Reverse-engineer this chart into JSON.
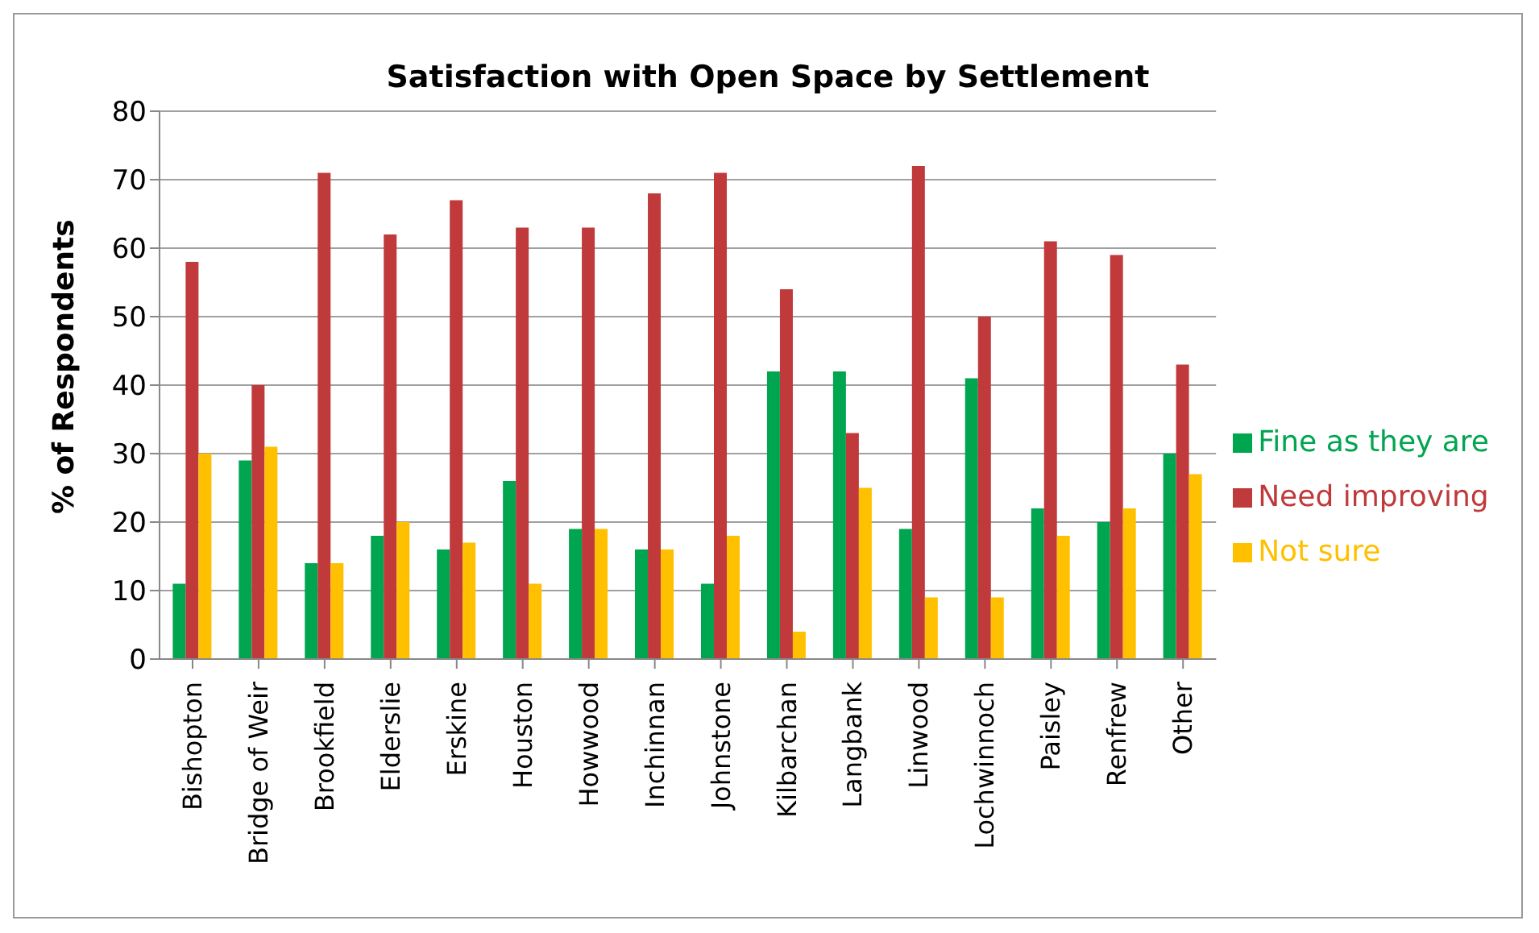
{
  "chart_data": {
    "type": "bar",
    "title": "Satisfaction with Open Space by Settlement",
    "ylabel": "% of Respondents",
    "categories": [
      "Bishopton",
      "Bridge of Weir",
      "Brookfield",
      "Elderslie",
      "Erskine",
      "Houston",
      "Howwood",
      "Inchinnan",
      "Johnstone",
      "Kilbarchan",
      "Langbank",
      "Linwood",
      "Lochwinnoch",
      "Paisley",
      "Renfrew",
      "Other"
    ],
    "series": [
      {
        "name": "Fine as they are",
        "color": "#00a550",
        "values": [
          11,
          29,
          14,
          18,
          16,
          26,
          19,
          16,
          11,
          42,
          42,
          19,
          41,
          22,
          20,
          30
        ]
      },
      {
        "name": "Need improving",
        "color": "#c0393b",
        "values": [
          58,
          40,
          71,
          62,
          67,
          63,
          63,
          68,
          71,
          54,
          33,
          72,
          50,
          61,
          59,
          43
        ]
      },
      {
        "name": "Not sure",
        "color": "#ffc000",
        "values": [
          30,
          31,
          14,
          20,
          17,
          11,
          19,
          16,
          18,
          4,
          25,
          9,
          9,
          18,
          22,
          27
        ]
      }
    ],
    "ylim": [
      0,
      80
    ],
    "yticks": [
      0,
      10,
      20,
      30,
      40,
      50,
      60,
      70,
      80
    ],
    "grid": "y",
    "legend": "right"
  }
}
